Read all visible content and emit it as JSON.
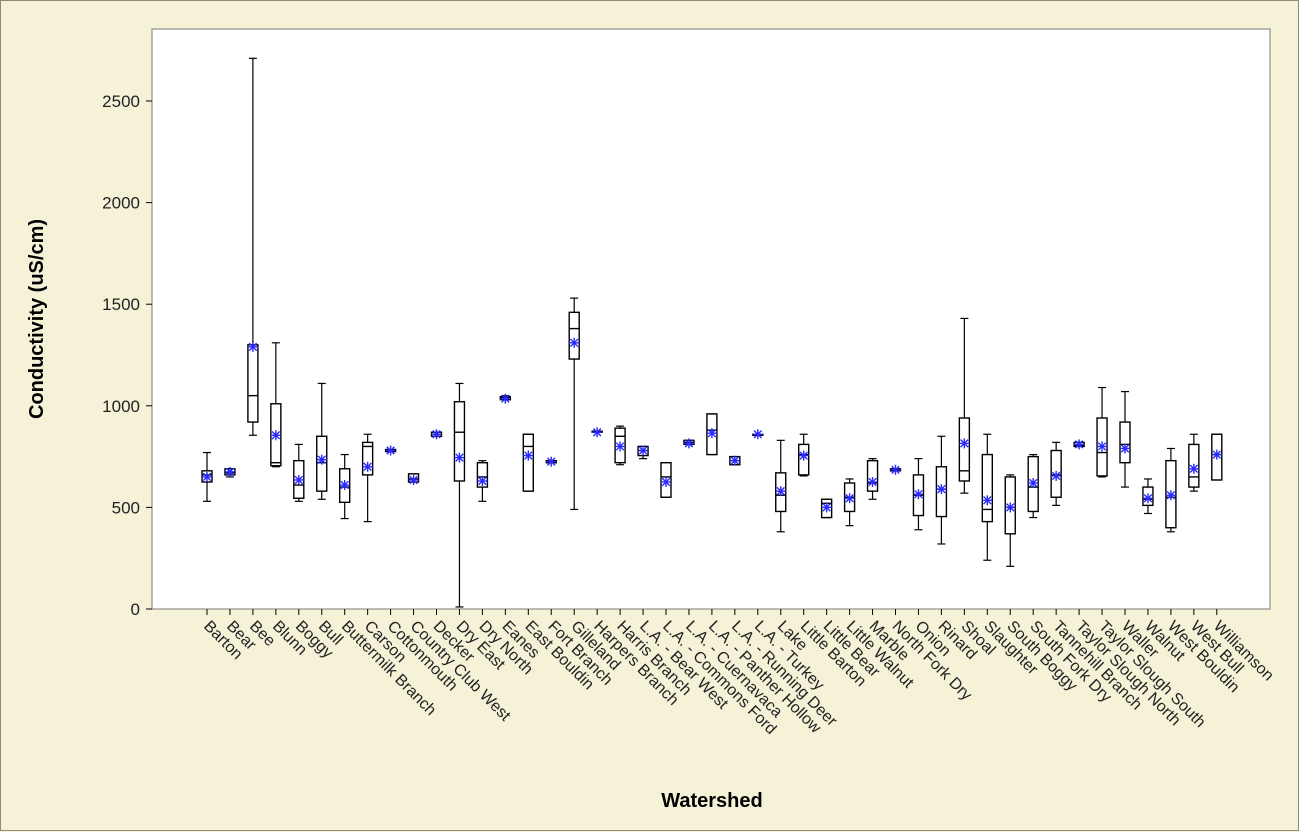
{
  "chart_data": {
    "type": "boxplot",
    "title": "",
    "xlabel": "Watershed",
    "ylabel": "Conductivity (uS/cm)",
    "ylim": [
      0,
      2800
    ],
    "yticks": [
      0,
      500,
      1000,
      1500,
      2000,
      2500
    ],
    "grid": false,
    "legend": "none",
    "colors": {
      "box": "#000000",
      "mean_marker": "#2a2aff",
      "plot_bg": "#ffffff",
      "page_bg": "#f5f2d8"
    },
    "categories": [
      "Barton",
      "Bear",
      "Bee",
      "Blunn",
      "Boggy",
      "Bull",
      "Buttermilk Branch",
      "Carson",
      "Cottonmouth",
      "Country Club West",
      "Decker",
      "Dry East",
      "Dry North",
      "Eanes",
      "East Bouldin",
      "Fort Branch",
      "Gilleland",
      "Harpers Branch",
      "Harris Branch",
      "L.A. - Bear West",
      "L.A. - Commons Ford",
      "L.A. - Cuernavaca",
      "L.A. - Panther Hollow",
      "L.A. - Running Deer",
      "L.A. - Turkey",
      "Lake",
      "Little Barton",
      "Little Bear",
      "Little Walnut",
      "Marble",
      "North Fork Dry",
      "Onion",
      "Rinard",
      "Shoal",
      "Slaughter",
      "South Boggy",
      "South Fork Dry",
      "Tannehill Branch",
      "Taylor Slough North",
      "Taylor Slough South",
      "Waller",
      "Walnut",
      "West Bouldin",
      "West Bull",
      "Williamson"
    ],
    "series": [
      {
        "min": [
          530,
          650,
          855,
          700,
          530,
          540,
          445,
          430,
          775,
          625,
          850,
          10,
          530,
          1030,
          580,
          720,
          490,
          870,
          710,
          740,
          550,
          810,
          760,
          710,
          855,
          380,
          655,
          450,
          410,
          540,
          680,
          390,
          320,
          570,
          240,
          210,
          450,
          510,
          800,
          650,
          600,
          470,
          380,
          580,
          635
        ],
        "q1": [
          625,
          660,
          920,
          705,
          545,
          580,
          525,
          660,
          775,
          625,
          850,
          630,
          600,
          1030,
          580,
          720,
          1230,
          870,
          720,
          755,
          550,
          810,
          760,
          710,
          855,
          480,
          660,
          450,
          480,
          580,
          680,
          460,
          455,
          630,
          430,
          370,
          480,
          550,
          800,
          655,
          720,
          510,
          400,
          600,
          635
        ],
        "median": [
          660,
          670,
          1050,
          720,
          610,
          720,
          600,
          800,
          775,
          640,
          860,
          870,
          650,
          1040,
          800,
          720,
          1380,
          870,
          850,
          780,
          650,
          820,
          880,
          730,
          855,
          560,
          760,
          520,
          550,
          620,
          680,
          560,
          590,
          680,
          490,
          500,
          600,
          660,
          805,
          770,
          810,
          540,
          550,
          650,
          760
        ],
        "q3": [
          680,
          690,
          1300,
          1010,
          730,
          850,
          690,
          820,
          785,
          665,
          870,
          1020,
          720,
          1045,
          860,
          730,
          1460,
          875,
          890,
          800,
          720,
          830,
          960,
          750,
          860,
          670,
          810,
          540,
          620,
          730,
          690,
          660,
          700,
          940,
          760,
          650,
          750,
          780,
          820,
          940,
          920,
          600,
          730,
          810,
          860
        ],
        "max": [
          770,
          690,
          2710,
          1310,
          810,
          1110,
          760,
          860,
          785,
          665,
          870,
          1110,
          730,
          1050,
          860,
          730,
          1530,
          875,
          900,
          800,
          720,
          830,
          960,
          750,
          860,
          830,
          860,
          540,
          640,
          740,
          690,
          740,
          850,
          1430,
          860,
          660,
          760,
          820,
          820,
          1090,
          1070,
          640,
          790,
          860,
          860
        ],
        "mean": [
          650,
          675,
          1290,
          855,
          635,
          735,
          610,
          700,
          780,
          635,
          860,
          745,
          630,
          1035,
          755,
          725,
          1310,
          870,
          800,
          780,
          625,
          815,
          865,
          730,
          860,
          580,
          755,
          500,
          545,
          625,
          685,
          565,
          590,
          815,
          535,
          500,
          620,
          655,
          810,
          800,
          790,
          545,
          560,
          690,
          760
        ]
      }
    ]
  }
}
